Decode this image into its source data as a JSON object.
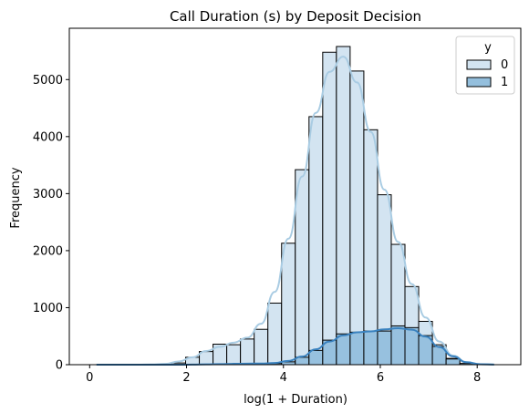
{
  "chart_data": {
    "type": "histogram",
    "title": "Call Duration (s) by Deposit Decision",
    "xlabel": "log(1 + Duration)",
    "ylabel": "Frequency",
    "xlim": [
      -0.42,
      8.9
    ],
    "ylim": [
      0,
      5900
    ],
    "xticks": [
      0,
      2,
      4,
      6,
      8
    ],
    "yticks": [
      0,
      1000,
      2000,
      3000,
      4000,
      5000
    ],
    "bin_start": 0.0,
    "bin_width": 0.283,
    "legend": {
      "title": "y",
      "position": "top-right",
      "entries": [
        "0",
        "1"
      ]
    },
    "grid": false,
    "colors": {
      "series_0": "#d3e4f1",
      "series_1": "#94bfdd",
      "kde_0": "#a9cce3",
      "kde_1": "#3a82bf",
      "edge": "#000000"
    },
    "series": [
      {
        "name": "0",
        "values": [
          0,
          0,
          0,
          0,
          0,
          10,
          30,
          130,
          230,
          360,
          350,
          450,
          620,
          1080,
          2130,
          3420,
          4350,
          5480,
          5580,
          5150,
          4120,
          2980,
          2110,
          1370,
          760,
          350,
          110,
          20,
          5,
          0
        ]
      },
      {
        "name": "1",
        "values": [
          0,
          0,
          0,
          0,
          0,
          0,
          0,
          0,
          5,
          10,
          15,
          20,
          20,
          20,
          50,
          130,
          250,
          430,
          540,
          570,
          590,
          590,
          680,
          650,
          510,
          320,
          100,
          20,
          5,
          0
        ]
      }
    ]
  }
}
